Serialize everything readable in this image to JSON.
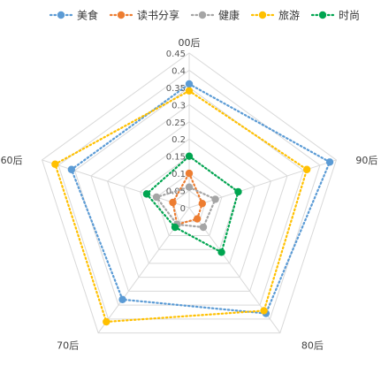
{
  "chart_data": {
    "type": "radar",
    "categories": [
      "00后",
      "90后",
      "80后",
      "70后",
      "60后"
    ],
    "rmax": 0.45,
    "ticks": [
      0,
      0.05,
      0.1,
      0.15,
      0.2,
      0.25,
      0.3,
      0.35,
      0.4,
      0.45
    ],
    "tick_labels": [
      "0",
      "0.05",
      "0.1",
      "0.15",
      "0.2",
      "0.25",
      "0.3",
      "0.35",
      "0.4",
      "0.45"
    ],
    "legend_position": "top",
    "grid": true,
    "line_style": "dotted",
    "series": [
      {
        "name": "美食",
        "color": "#5B9BD5",
        "values": [
          0.36,
          0.43,
          0.38,
          0.33,
          0.36
        ]
      },
      {
        "name": "读书分享",
        "color": "#ED7D31",
        "values": [
          0.1,
          0.04,
          0.04,
          0.06,
          0.05
        ]
      },
      {
        "name": "健康",
        "color": "#A5A5A5",
        "values": [
          0.06,
          0.08,
          0.07,
          0.06,
          0.1
        ]
      },
      {
        "name": "旅游",
        "color": "#FFC000",
        "values": [
          0.34,
          0.36,
          0.37,
          0.41,
          0.41
        ]
      },
      {
        "name": "时尚",
        "color": "#00A550",
        "values": [
          0.15,
          0.15,
          0.16,
          0.07,
          0.13
        ]
      }
    ]
  }
}
